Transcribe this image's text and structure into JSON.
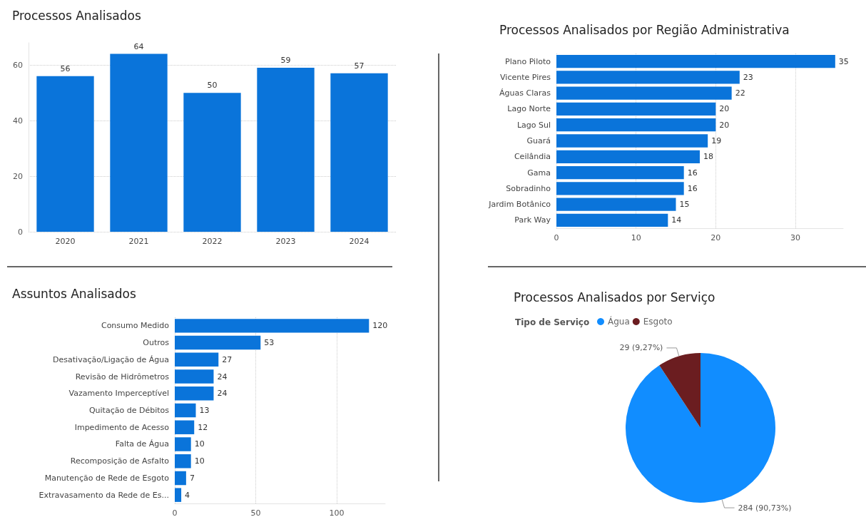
{
  "chart_data": [
    {
      "type": "bar",
      "title": "Processos Analisados",
      "categories": [
        "2020",
        "2021",
        "2022",
        "2023",
        "2024"
      ],
      "values": [
        56,
        64,
        50,
        59,
        57
      ],
      "color": "#0a74da",
      "ylim": [
        0,
        68
      ],
      "yticks": [
        0,
        20,
        40,
        60
      ],
      "grid": "y",
      "data_labels": true
    },
    {
      "type": "bar",
      "orientation": "horizontal",
      "title": "Processos Analisados por Região Administrativa",
      "categories": [
        "Plano Piloto",
        "Vicente Pires",
        "Águas Claras",
        "Lago Norte",
        "Lago Sul",
        "Guará",
        "Ceilândia",
        "Gama",
        "Sobradinho",
        "Jardim Botânico",
        "Park Way"
      ],
      "values": [
        35,
        23,
        22,
        20,
        20,
        19,
        18,
        16,
        16,
        15,
        14
      ],
      "color": "#0a74da",
      "xlim": [
        0,
        36
      ],
      "xticks": [
        0,
        10,
        20,
        30
      ],
      "grid": "x",
      "data_labels": true
    },
    {
      "type": "bar",
      "orientation": "horizontal",
      "title": "Assuntos Analisados",
      "categories": [
        "Consumo Medido",
        "Outros",
        "Desativação/Ligação de Água",
        "Revisão de Hidrômetros",
        "Vazamento Imperceptível",
        "Quitação de Débitos",
        "Impedimento de Acesso",
        "Falta de Água",
        "Recomposição de Asfalto",
        "Manutenção de Rede de Esgoto",
        "Extravasamento da Rede de Es..."
      ],
      "values": [
        120,
        53,
        27,
        24,
        24,
        13,
        12,
        10,
        10,
        7,
        4
      ],
      "color": "#0a74da",
      "xlim": [
        0,
        130
      ],
      "xticks": [
        0,
        50,
        100
      ],
      "grid": "x",
      "data_labels": true
    },
    {
      "type": "pie",
      "title": "Processos Analisados por Serviço",
      "legend_title": "Tipo de Serviço",
      "legend": "top left",
      "categories": [
        "Água",
        "Esgoto"
      ],
      "values": [
        284,
        29
      ],
      "colors": [
        "#118dff",
        "#6b1d20"
      ],
      "value_labels": [
        "284 (90,73%)",
        "29 (9,27%)"
      ]
    }
  ]
}
